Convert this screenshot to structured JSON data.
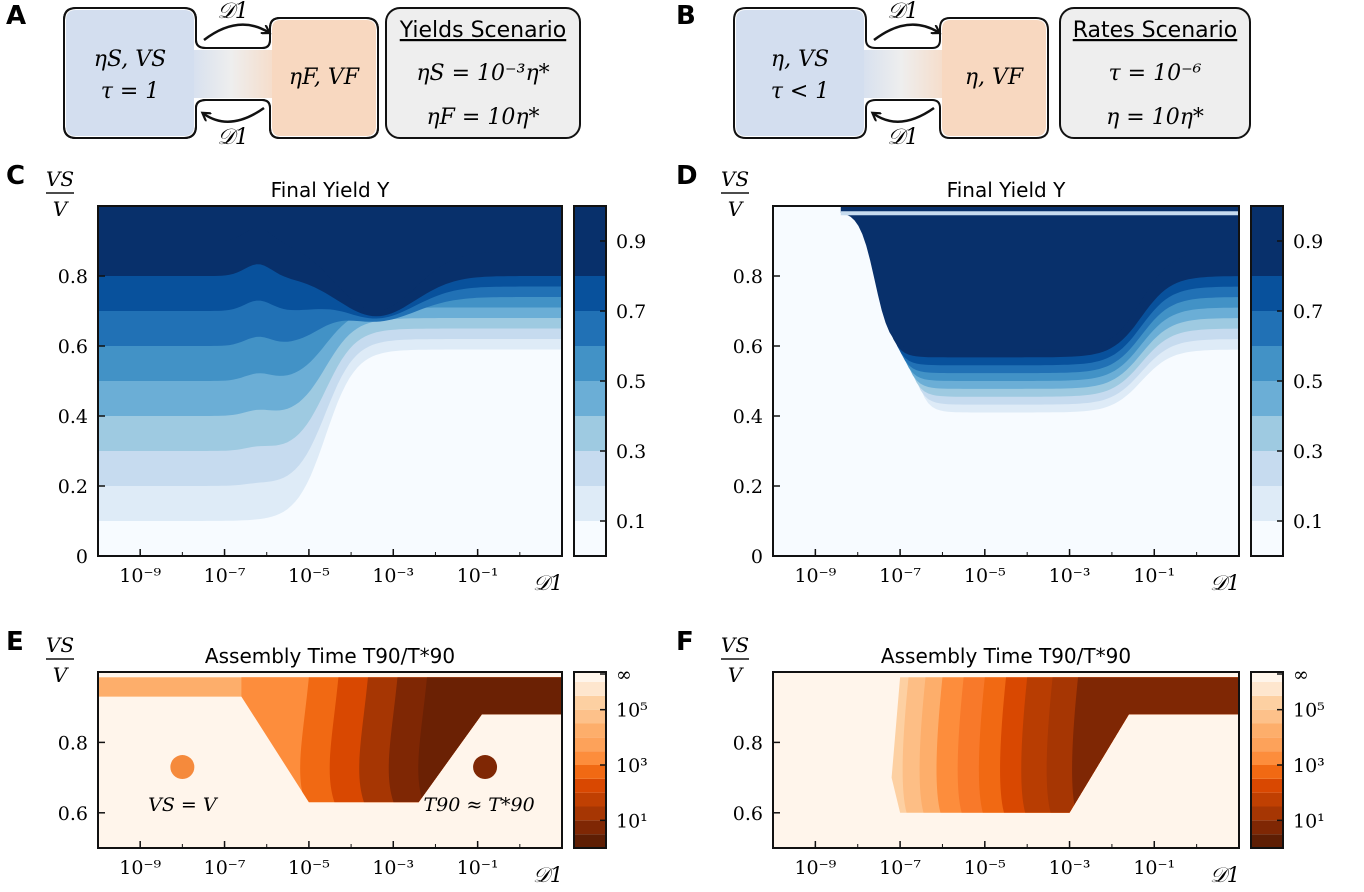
{
  "panels": {
    "A": {
      "letter": "A",
      "slow_line1": "ηS, VS",
      "slow_line2": "τ = 1",
      "fast_label": "ηF, VF",
      "rate_top": "𝒟1",
      "rate_bottom": "𝒟1",
      "scenario_title": "Yields Scenario",
      "scenario_line1": "ηS = 10⁻³η*",
      "scenario_line2": "ηF = 10η*"
    },
    "B": {
      "letter": "B",
      "slow_line1": "η, VS",
      "slow_line2": "τ < 1",
      "fast_label": "η, VF",
      "rate_top": "𝒟1",
      "rate_bottom": "𝒟1",
      "scenario_title": "Rates Scenario",
      "scenario_line1": "τ = 10⁻⁶",
      "scenario_line2": "η = 10η*"
    },
    "C": {
      "letter": "C"
    },
    "D": {
      "letter": "D"
    },
    "E": {
      "letter": "E",
      "marker_left": "VS = V",
      "marker_right": "T90 ≈ T*90"
    },
    "F": {
      "letter": "F"
    }
  },
  "colors": {
    "slow_box": "#d3deef",
    "fast_box": "#f8d8c0",
    "scenario_box": "#eeeeee",
    "marker_left": "#f58a3c",
    "marker_right": "#7f2704",
    "blues": [
      "#f7fbff",
      "#deebf7",
      "#c6dbef",
      "#9ecae1",
      "#6baed6",
      "#4292c6",
      "#2171b5",
      "#08519c",
      "#08306b"
    ],
    "oranges": [
      "#fff5eb",
      "#fee6ce",
      "#fdd0a2",
      "#fdae6b",
      "#fd8d3c",
      "#f16913",
      "#d94801",
      "#a63603",
      "#7f2704",
      "#5e1e04"
    ]
  },
  "chart_data": [
    {
      "id": "C",
      "type": "heatmap",
      "title": "Final Yield Y",
      "xlabel": "𝒟1",
      "ylabel": "VS/V",
      "x_scale": "log",
      "xlim": [
        1e-10,
        10
      ],
      "ylim": [
        0,
        1
      ],
      "x_ticks": [
        "10⁻⁹",
        "10⁻⁷",
        "10⁻⁵",
        "10⁻³",
        "10⁻¹"
      ],
      "y_ticks": [
        "0",
        "0.2",
        "0.4",
        "0.6",
        "0.8"
      ],
      "colorbar_ticks": [
        "0.1",
        "0.3",
        "0.5",
        "0.7",
        "0.9"
      ],
      "colorbar_range": [
        0,
        1
      ],
      "levels": [
        0.1,
        0.2,
        0.3,
        0.4,
        0.5,
        0.6,
        0.7,
        0.8,
        0.9
      ],
      "contour_y_at_low_D1": [
        0.1,
        0.2,
        0.3,
        0.4,
        0.5,
        0.6,
        0.7,
        0.8,
        0.9
      ],
      "contour_y_at_high_D1": [
        0.59,
        0.62,
        0.65,
        0.68,
        0.71,
        0.74,
        0.77,
        0.8,
        0.87
      ],
      "optimum": {
        "D1": 0.0003,
        "VS_over_V": 0.6,
        "yield": 0.9
      }
    },
    {
      "id": "D",
      "type": "heatmap",
      "title": "Final Yield Y",
      "xlabel": "𝒟1",
      "ylabel": "VS/V",
      "x_scale": "log",
      "xlim": [
        1e-10,
        10
      ],
      "ylim": [
        0,
        1
      ],
      "x_ticks": [
        "10⁻⁹",
        "10⁻⁷",
        "10⁻⁵",
        "10⁻³",
        "10⁻¹"
      ],
      "y_ticks": [
        "0",
        "0.2",
        "0.4",
        "0.6",
        "0.8"
      ],
      "colorbar_ticks": [
        "0.1",
        "0.3",
        "0.5",
        "0.7",
        "0.9"
      ],
      "colorbar_range": [
        0,
        1
      ],
      "levels": [
        0.1,
        0.2,
        0.3,
        0.4,
        0.5,
        0.6,
        0.7,
        0.8,
        0.9
      ],
      "contour_y_at_mid_D1": [
        0.41,
        0.44,
        0.47,
        0.5,
        0.53,
        0.55,
        0.57,
        0.58,
        0.59
      ],
      "contour_y_at_high_D1": [
        0.59,
        0.62,
        0.65,
        0.68,
        0.71,
        0.74,
        0.77,
        0.8,
        0.87
      ],
      "high_yield_region": {
        "D1_from": 1e-07,
        "VS_over_V_from": 0.59
      }
    },
    {
      "id": "E",
      "type": "heatmap",
      "title": "Assembly Time T90/T*90",
      "xlabel": "𝒟1",
      "ylabel": "VS/V",
      "x_scale": "log",
      "xlim": [
        1e-10,
        10
      ],
      "ylim": [
        0.5,
        1
      ],
      "x_ticks": [
        "10⁻⁹",
        "10⁻⁷",
        "10⁻⁵",
        "10⁻³",
        "10⁻¹"
      ],
      "y_ticks": [
        "0.6",
        "0.8"
      ],
      "colorbar_ticks": [
        "∞",
        "10⁵",
        "10³",
        "10¹"
      ],
      "colorbar_scale": "log",
      "colorbar_range": [
        1,
        1000000
      ],
      "band_boundaries_log10_D1": [
        -5.0,
        -4.3,
        -3.6,
        -2.9,
        -2.2
      ],
      "finite_region": {
        "lower_VS_over_V_at_optimum": 0.63
      },
      "markers": [
        {
          "label": "VS = V",
          "D1": 1e-08,
          "VS_over_V": 0.73
        },
        {
          "label": "T90 ≈ T*90",
          "D1": 0.15,
          "VS_over_V": 0.73
        }
      ]
    },
    {
      "id": "F",
      "type": "heatmap",
      "title": "Assembly Time T90/T*90",
      "xlabel": "𝒟1",
      "ylabel": "VS/V",
      "x_scale": "log",
      "xlim": [
        1e-10,
        10
      ],
      "ylim": [
        0.5,
        1
      ],
      "x_ticks": [
        "10⁻⁹",
        "10⁻⁷",
        "10⁻⁵",
        "10⁻³",
        "10⁻¹"
      ],
      "y_ticks": [
        "0.6",
        "0.8"
      ],
      "colorbar_ticks": [
        "∞",
        "10⁵",
        "10³",
        "10¹"
      ],
      "colorbar_scale": "log",
      "colorbar_range": [
        1,
        1000000
      ],
      "band_boundaries_log10_D1": [
        -6.8,
        -6.4,
        -6.0,
        -5.5,
        -5.0,
        -4.5,
        -4.0,
        -3.4,
        -2.8
      ],
      "finite_region": {
        "D1_from": 1e-07,
        "lower_VS_over_V": 0.6
      }
    }
  ]
}
